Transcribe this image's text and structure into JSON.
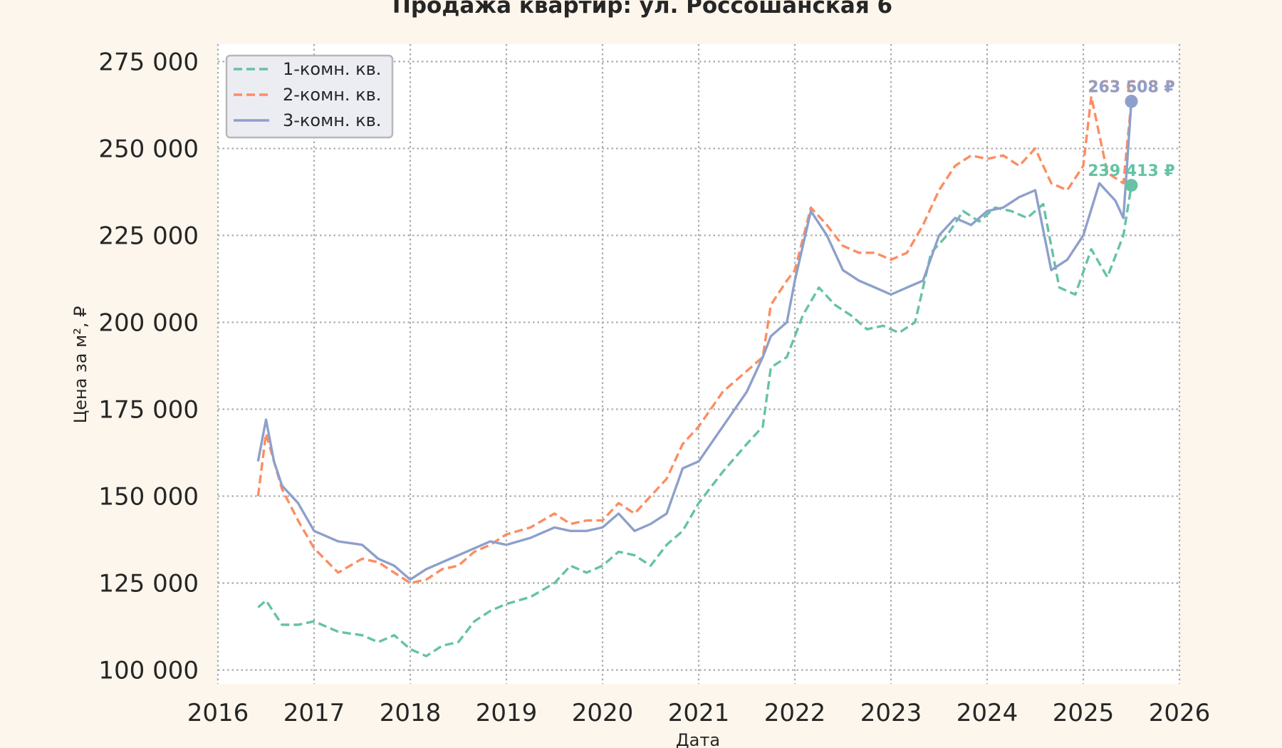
{
  "chart_data": {
    "type": "line",
    "title": "Продажа квартир: ул. Россошанская 6",
    "xlabel": "Дата",
    "ylabel": "Цена за м², ₽",
    "xlim": [
      2016,
      2026
    ],
    "ylim": [
      96000,
      280000
    ],
    "x_ticks": [
      "2016",
      "2017",
      "2018",
      "2019",
      "2020",
      "2021",
      "2022",
      "2023",
      "2024",
      "2025",
      "2026"
    ],
    "y_ticks": [
      {
        "value": 100000,
        "label": "100 000"
      },
      {
        "value": 125000,
        "label": "125 000"
      },
      {
        "value": 150000,
        "label": "150 000"
      },
      {
        "value": 175000,
        "label": "175 000"
      },
      {
        "value": 200000,
        "label": "200 000"
      },
      {
        "value": 225000,
        "label": "225 000"
      },
      {
        "value": 250000,
        "label": "250 000"
      },
      {
        "value": 275000,
        "label": "275 000"
      }
    ],
    "grid": true,
    "legend_position": "top-left",
    "series": [
      {
        "name": "1-комн. кв.",
        "color": "#66c2a5",
        "dash": "dashed",
        "x": [
          "2016-06",
          "2016-07",
          "2016-09",
          "2016-11",
          "2017-01",
          "2017-04",
          "2017-07",
          "2017-09",
          "2017-11",
          "2018-01",
          "2018-03",
          "2018-05",
          "2018-07",
          "2018-09",
          "2018-11",
          "2019-01",
          "2019-04",
          "2019-07",
          "2019-09",
          "2019-11",
          "2020-01",
          "2020-03",
          "2020-05",
          "2020-07",
          "2020-09",
          "2020-11",
          "2021-01",
          "2021-04",
          "2021-07",
          "2021-09",
          "2021-10",
          "2021-12",
          "2022-02",
          "2022-04",
          "2022-06",
          "2022-08",
          "2022-10",
          "2022-12",
          "2023-02",
          "2023-04",
          "2023-06",
          "2023-08",
          "2023-10",
          "2023-12",
          "2024-02",
          "2024-04",
          "2024-06",
          "2024-08",
          "2024-10",
          "2024-12",
          "2025-02",
          "2025-04",
          "2025-06",
          "2025-07"
        ],
        "values": [
          118000,
          120000,
          113000,
          113000,
          114000,
          111000,
          110000,
          108000,
          110000,
          106000,
          104000,
          107000,
          108000,
          114000,
          117000,
          119000,
          121000,
          125000,
          130000,
          128000,
          130000,
          134000,
          133000,
          130000,
          136000,
          140000,
          148000,
          157000,
          165000,
          170000,
          187000,
          190000,
          202000,
          210000,
          205000,
          202000,
          198000,
          199000,
          197000,
          200000,
          220000,
          225000,
          232000,
          229000,
          233000,
          232000,
          230000,
          234000,
          210000,
          208000,
          221000,
          213000,
          225000,
          239413
        ]
      },
      {
        "name": "2-комн. кв.",
        "color": "#fc8d62",
        "dash": "dashed",
        "x": [
          "2016-06",
          "2016-07",
          "2016-08",
          "2016-09",
          "2016-11",
          "2017-01",
          "2017-04",
          "2017-07",
          "2017-09",
          "2017-11",
          "2018-01",
          "2018-03",
          "2018-05",
          "2018-07",
          "2018-09",
          "2018-11",
          "2019-01",
          "2019-04",
          "2019-07",
          "2019-09",
          "2019-11",
          "2020-01",
          "2020-03",
          "2020-05",
          "2020-07",
          "2020-09",
          "2020-11",
          "2021-01",
          "2021-04",
          "2021-07",
          "2021-09",
          "2021-10",
          "2021-12",
          "2022-01",
          "2022-03",
          "2022-05",
          "2022-07",
          "2022-09",
          "2022-11",
          "2023-01",
          "2023-03",
          "2023-05",
          "2023-07",
          "2023-09",
          "2023-11",
          "2024-01",
          "2024-03",
          "2024-05",
          "2024-07",
          "2024-09",
          "2024-11",
          "2025-01",
          "2025-02",
          "2025-04",
          "2025-06",
          "2025-07"
        ],
        "values": [
          150000,
          168000,
          160000,
          152000,
          143000,
          135000,
          128000,
          132000,
          131000,
          128000,
          125000,
          126000,
          129000,
          130000,
          134000,
          136000,
          139000,
          141000,
          145000,
          142000,
          143000,
          143000,
          148000,
          145000,
          150000,
          155000,
          165000,
          170000,
          180000,
          186000,
          190000,
          205000,
          212000,
          215000,
          233000,
          228000,
          222000,
          220000,
          220000,
          218000,
          220000,
          228000,
          238000,
          245000,
          248000,
          247000,
          248000,
          245000,
          250000,
          240000,
          238000,
          245000,
          265000,
          243000,
          240000,
          263608
        ]
      },
      {
        "name": "3-комн. кв.",
        "color": "#8da0cb",
        "dash": "solid",
        "x": [
          "2016-06",
          "2016-07",
          "2016-08",
          "2016-09",
          "2016-11",
          "2017-01",
          "2017-04",
          "2017-07",
          "2017-09",
          "2017-11",
          "2018-01",
          "2018-03",
          "2018-05",
          "2018-07",
          "2018-09",
          "2018-11",
          "2019-01",
          "2019-04",
          "2019-07",
          "2019-09",
          "2019-11",
          "2020-01",
          "2020-03",
          "2020-05",
          "2020-07",
          "2020-09",
          "2020-11",
          "2021-01",
          "2021-04",
          "2021-07",
          "2021-09",
          "2021-10",
          "2021-12",
          "2022-01",
          "2022-03",
          "2022-05",
          "2022-07",
          "2022-09",
          "2022-11",
          "2023-01",
          "2023-03",
          "2023-05",
          "2023-07",
          "2023-09",
          "2023-11",
          "2024-01",
          "2024-03",
          "2024-05",
          "2024-07",
          "2024-09",
          "2024-11",
          "2025-01",
          "2025-03",
          "2025-05",
          "2025-06",
          "2025-07"
        ],
        "values": [
          160000,
          172000,
          160000,
          153000,
          148000,
          140000,
          137000,
          136000,
          132000,
          130000,
          126000,
          129000,
          131000,
          133000,
          135000,
          137000,
          136000,
          138000,
          141000,
          140000,
          140000,
          141000,
          145000,
          140000,
          142000,
          145000,
          158000,
          160000,
          170000,
          180000,
          190000,
          196000,
          200000,
          212000,
          232000,
          225000,
          215000,
          212000,
          210000,
          208000,
          210000,
          212000,
          225000,
          230000,
          228000,
          232000,
          233000,
          236000,
          238000,
          215000,
          218000,
          225000,
          240000,
          235000,
          230000,
          263508
        ]
      }
    ],
    "annotations": [
      {
        "series": "2-комн. кв.",
        "text": "263 608 ₽",
        "x": "2025-07",
        "y": 263608
      },
      {
        "series": "3-комн. кв.",
        "text": "263 508 ₽",
        "x": "2025-07",
        "y": 263508
      },
      {
        "series": "1-комн. кв.",
        "text": "239 413 ₽",
        "x": "2025-07",
        "y": 239413
      }
    ]
  }
}
